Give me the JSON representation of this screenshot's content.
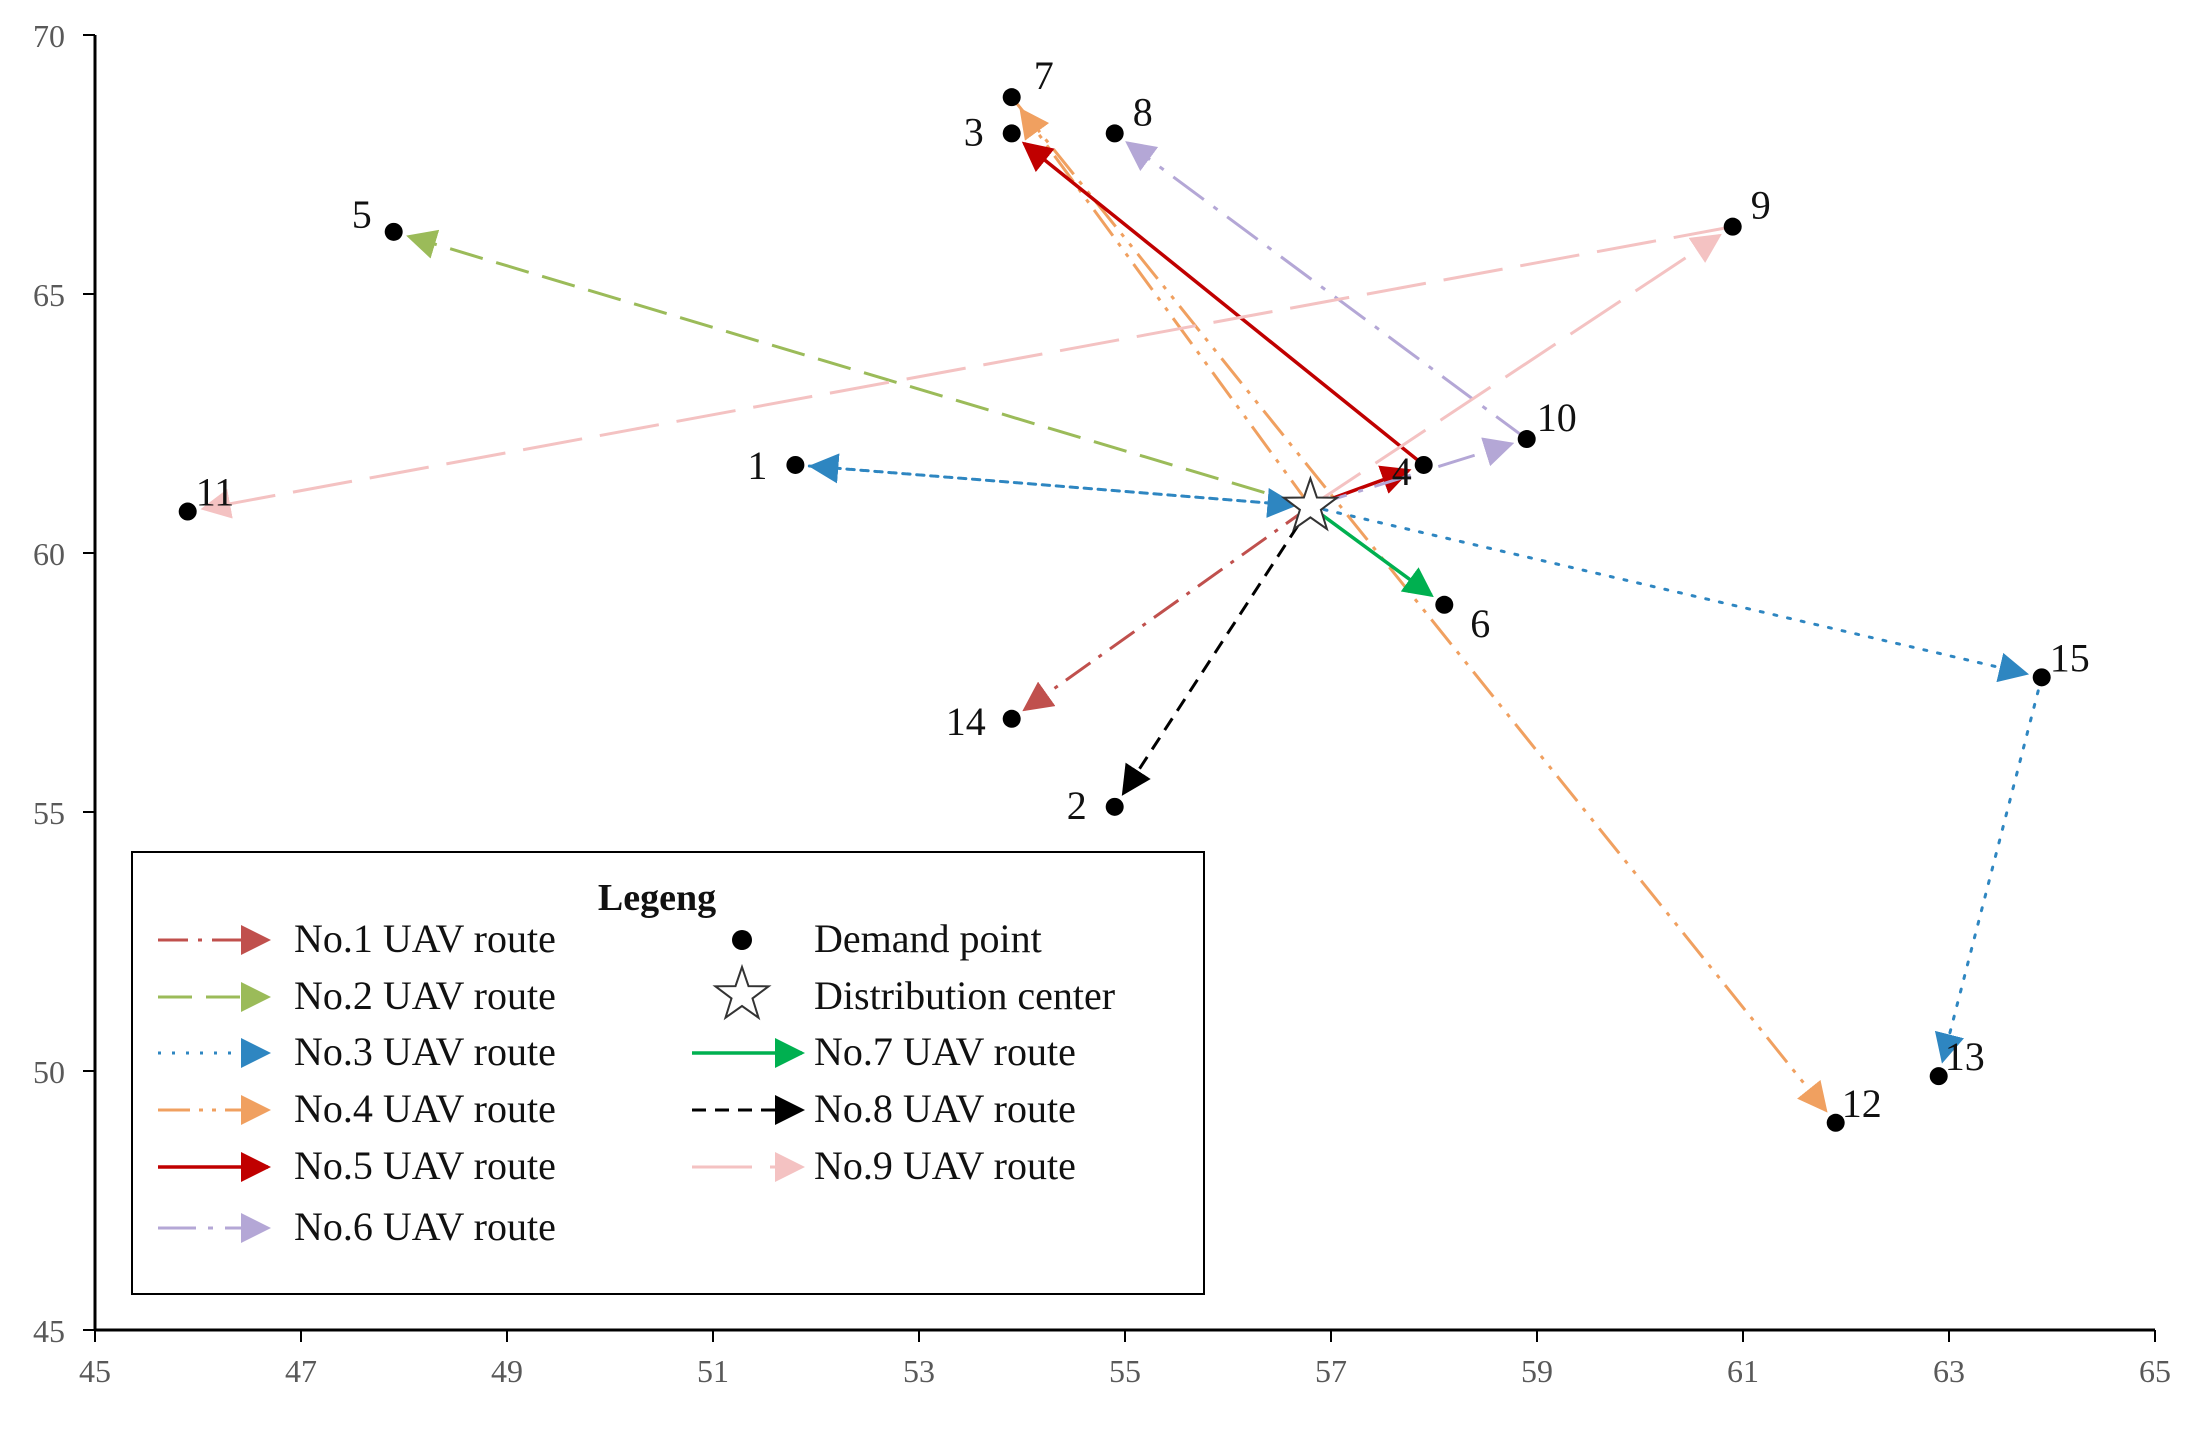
{
  "chart_data": {
    "type": "scatter",
    "title": "",
    "xlabel": "",
    "ylabel": "",
    "xlim": [
      45,
      65
    ],
    "ylim": [
      45,
      70
    ],
    "xticks": [
      45,
      47,
      49,
      51,
      53,
      55,
      57,
      59,
      61,
      63,
      65
    ],
    "yticks": [
      45,
      50,
      55,
      60,
      65,
      70
    ],
    "grid": false,
    "legend_position": "bottom-left",
    "distribution_center": {
      "x": 56.8,
      "y": 60.9
    },
    "points": [
      {
        "id": "1",
        "x": 51.8,
        "y": 61.7
      },
      {
        "id": "2",
        "x": 54.9,
        "y": 55.1
      },
      {
        "id": "3",
        "x": 53.9,
        "y": 68.1
      },
      {
        "id": "4",
        "x": 57.9,
        "y": 61.7
      },
      {
        "id": "5",
        "x": 47.9,
        "y": 66.2
      },
      {
        "id": "6",
        "x": 58.1,
        "y": 59.0
      },
      {
        "id": "7",
        "x": 53.9,
        "y": 68.8
      },
      {
        "id": "8",
        "x": 54.9,
        "y": 68.1
      },
      {
        "id": "9",
        "x": 60.9,
        "y": 66.3
      },
      {
        "id": "10",
        "x": 58.9,
        "y": 62.2
      },
      {
        "id": "11",
        "x": 45.9,
        "y": 60.8
      },
      {
        "id": "12",
        "x": 61.9,
        "y": 49.0
      },
      {
        "id": "13",
        "x": 62.9,
        "y": 49.9
      },
      {
        "id": "14",
        "x": 53.9,
        "y": 56.8
      },
      {
        "id": "15",
        "x": 63.9,
        "y": 57.6
      }
    ],
    "routes": [
      {
        "name": "No.1 UAV route",
        "color": "#c0504d",
        "style": "dashdot",
        "path": [
          "C",
          "14"
        ]
      },
      {
        "name": "No.2 UAV route",
        "color": "#9bbb59",
        "style": "dash",
        "path": [
          "C",
          "5"
        ]
      },
      {
        "name": "No.3 UAV route",
        "color": "#2e86c1",
        "style": "dot",
        "path": [
          "C",
          "1",
          "C",
          "15",
          "13"
        ]
      },
      {
        "name": "No.4 UAV route",
        "color": "#f0a060",
        "style": "dashdotdot",
        "path": [
          "C",
          "7",
          "12"
        ]
      },
      {
        "name": "No.5 UAV route",
        "color": "#c00000",
        "style": "solid",
        "path": [
          "C",
          "4",
          "3"
        ]
      },
      {
        "name": "No.6 UAV route",
        "color": "#b4a7d6",
        "style": "dashdot-long",
        "path": [
          "C",
          "10",
          "8"
        ]
      },
      {
        "name": "No.7 UAV route",
        "color": "#00b050",
        "style": "solid",
        "path": [
          "C",
          "6"
        ]
      },
      {
        "name": "No.8 UAV route",
        "color": "#000000",
        "style": "dash-short",
        "path": [
          "C",
          "2"
        ]
      },
      {
        "name": "No.9 UAV route",
        "color": "#f4c2c2",
        "style": "long-dash",
        "path": [
          "C",
          "9",
          "11"
        ]
      }
    ],
    "legend": {
      "title": "Legeng",
      "demand_label": "Demand point",
      "center_label": "Distribution center"
    }
  }
}
